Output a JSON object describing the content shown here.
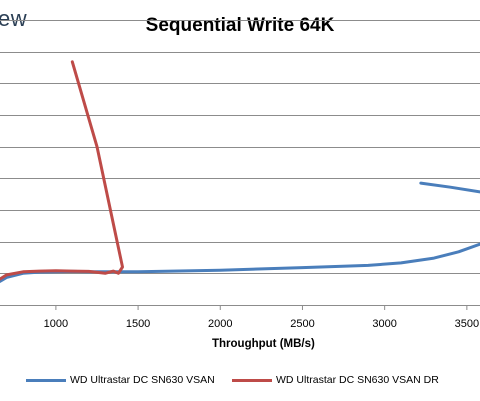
{
  "logo_text": "ew",
  "chart_data": {
    "type": "line",
    "title": "Sequential Write 64K",
    "xlabel": "Throughput (MB/s)",
    "ylabel": "",
    "xlim": [
      660,
      3580
    ],
    "xticks": [
      1000,
      1500,
      2000,
      2500,
      3000,
      3500
    ],
    "xtick_labels": [
      "1000",
      "1500",
      "2000",
      "2500",
      "3000",
      "3500"
    ],
    "ylim": [
      0,
      9
    ],
    "ygrid_values": [
      1,
      2,
      3,
      4,
      5,
      6,
      7,
      8,
      9
    ],
    "grid": "horizontal",
    "legend_position": "bottom",
    "series": [
      {
        "name": "WD Ultrastar DC SN630 VSAN",
        "color": "#4a7ebb",
        "x": [
          660,
          700,
          800,
          900,
          1000,
          1100,
          1200,
          1300,
          1400,
          1500,
          2000,
          2500,
          2900,
          3100,
          3300,
          3450,
          3580
        ],
        "y": [
          0.75,
          0.87,
          1.0,
          1.04,
          1.05,
          1.06,
          1.05,
          1.05,
          1.05,
          1.05,
          1.1,
          1.18,
          1.25,
          1.33,
          1.48,
          1.68,
          1.92
        ]
      },
      {
        "name": "WD Ultrastar DC SN630 VSAN DR",
        "color": "#be4b48",
        "x": [
          660,
          700,
          800,
          900,
          1000,
          1100,
          1200,
          1300,
          1350,
          1380,
          1405,
          1250,
          1100
        ],
        "y": [
          0.82,
          0.95,
          1.05,
          1.07,
          1.08,
          1.07,
          1.06,
          1.0,
          1.07,
          1.0,
          1.2,
          5.0,
          7.68
        ]
      },
      {
        "name": "",
        "color": "#4a7ebb",
        "x": [
          3220,
          3400,
          3580
        ],
        "y": [
          3.85,
          3.72,
          3.57
        ]
      }
    ]
  }
}
